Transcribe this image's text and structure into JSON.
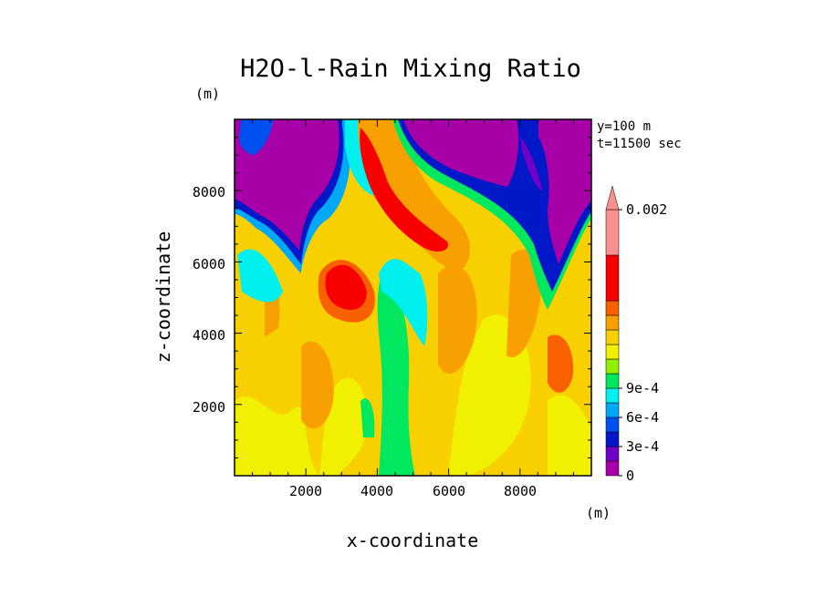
{
  "chart_data": {
    "type": "heatmap",
    "title": "H2O-l-Rain Mixing Ratio",
    "xlabel": "x-coordinate",
    "ylabel": "z-coordinate",
    "x_unit": "(m)",
    "z_unit": "(m)",
    "info": [
      "y=100 m",
      "t=11500 sec"
    ],
    "xlim": [
      0,
      10000
    ],
    "ylim": [
      0,
      10000
    ],
    "xticks": [
      "2000",
      "4000",
      "6000",
      "8000"
    ],
    "yticks": [
      "2000",
      "4000",
      "6000",
      "8000"
    ],
    "colorbar": {
      "labels": [
        {
          "text": "0",
          "value": 0
        },
        {
          "text": "3e-4",
          "value": 0.0003
        },
        {
          "text": "6e-4",
          "value": 0.0006
        },
        {
          "text": "9e-4",
          "value": 0.0009
        },
        {
          "text": "0.002",
          "value": 0.002
        }
      ],
      "colors": [
        "#a800a8",
        "#7000c8",
        "#0018c8",
        "#0050f0",
        "#00a8f8",
        "#00f0f0",
        "#00e860",
        "#90f000",
        "#f0f000",
        "#f8d000",
        "#f8a000",
        "#f86000",
        "#f80000",
        "#f89090"
      ],
      "extend": "max"
    },
    "description_regions": {
      "purple": "upper-left and upper-right plumes (~0)",
      "red": "core near x=3000 z=5000 and x=4500-5500 z=6500-8500",
      "green": "column near x=4400 from z=0 to z=5000"
    }
  }
}
